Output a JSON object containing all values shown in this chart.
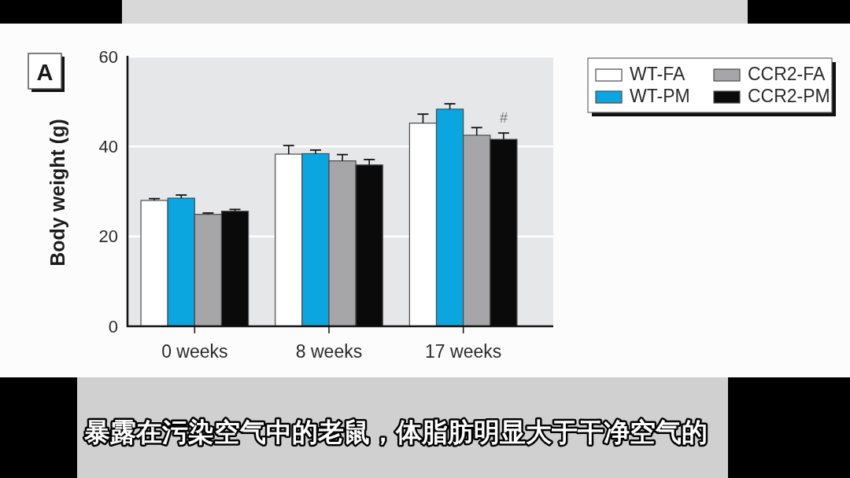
{
  "chart_data": {
    "type": "bar",
    "categories": [
      "0 weeks",
      "8 weeks",
      "17 weeks"
    ],
    "ylabel": "Body weight (g)",
    "ylim": [
      0,
      60
    ],
    "yticks": [
      0,
      20,
      40,
      60
    ],
    "grid": "y",
    "legend": "top right",
    "series": [
      {
        "name": "WT-FA",
        "color": "#ffffff",
        "values": [
          28.0,
          38.3,
          45.2
        ],
        "errors": [
          [
            28.0,
            28.4
          ],
          [
            38.3,
            40.2
          ],
          [
            45.2,
            47.2
          ]
        ]
      },
      {
        "name": "WT-PM",
        "color": "#0ba5e0",
        "values": [
          28.5,
          38.4,
          48.3
        ],
        "errors": [
          [
            28.5,
            29.2
          ],
          [
            38.4,
            39.2
          ],
          [
            48.3,
            49.5
          ]
        ]
      },
      {
        "name": "CCR2-FA",
        "color": "#a6a6a8",
        "values": [
          24.9,
          36.8,
          42.5
        ],
        "errors": [
          [
            24.9,
            25.2
          ],
          [
            36.8,
            38.2
          ],
          [
            42.5,
            44.2
          ]
        ]
      },
      {
        "name": "CCR2-PM",
        "color": "#0a0a0a",
        "values": [
          25.6,
          35.9,
          41.6
        ],
        "errors": [
          [
            25.6,
            26.0
          ],
          [
            35.9,
            37.1
          ],
          [
            41.6,
            43.0
          ]
        ]
      }
    ],
    "annotations": [
      "A",
      {
        "text": "#",
        "x": "17 weeks",
        "y": 46.3
      },
      "暴露在污染空气中的老鼠，体脂肪明显大于干净空气的"
    ]
  }
}
